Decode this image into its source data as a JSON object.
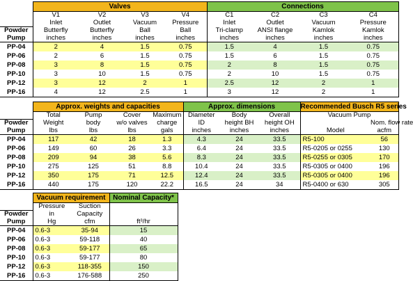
{
  "table1": {
    "groups": {
      "valves": "Valves",
      "connections": "Connections"
    },
    "corner": [
      "Powder",
      "Pump"
    ],
    "cols": [
      [
        "V1",
        "Inlet",
        "Butterfly",
        "inches"
      ],
      [
        "V2",
        "Outlet",
        "Butterfly",
        "inches"
      ],
      [
        "V3",
        "Vacuum",
        "Ball",
        "inches"
      ],
      [
        "V4",
        "Pressure",
        "Ball",
        "inches"
      ],
      [
        "C1",
        "Inlet",
        "Tri-clamp",
        "inches"
      ],
      [
        "C2",
        "Outlet",
        "ANSI flange",
        "inches"
      ],
      [
        "C3",
        "Vacuum",
        "Kamlok",
        "inches"
      ],
      [
        "C4",
        "Pressure",
        "Kamlok",
        "inches"
      ]
    ],
    "rows": [
      {
        "pump": "PP-04",
        "v": [
          "2",
          "4",
          "1.5",
          "0.75",
          "1.5",
          "4",
          "1.5",
          "0.75"
        ]
      },
      {
        "pump": "PP-06",
        "v": [
          "2",
          "6",
          "1.5",
          "0.75",
          "1.5",
          "6",
          "1.5",
          "0.75"
        ]
      },
      {
        "pump": "PP-08",
        "v": [
          "3",
          "8",
          "1.5",
          "0.75",
          "2",
          "8",
          "1.5",
          "0.75"
        ]
      },
      {
        "pump": "PP-10",
        "v": [
          "3",
          "10",
          "1.5",
          "0.75",
          "2",
          "10",
          "1.5",
          "0.75"
        ]
      },
      {
        "pump": "PP-12",
        "v": [
          "3",
          "12",
          "2",
          "1",
          "2.5",
          "12",
          "2",
          "1"
        ]
      },
      {
        "pump": "PP-16",
        "v": [
          "4",
          "12",
          "2.5",
          "1",
          "3",
          "12",
          "2",
          "1"
        ]
      }
    ]
  },
  "table2": {
    "groups": {
      "weights": "Approx. weights and capacities",
      "dims": "Approx. dimensions",
      "busch": "Recommended Busch R5 series"
    },
    "corner": [
      "Powder",
      "Pump"
    ],
    "cols": [
      [
        "",
        "Total",
        "Weight",
        "lbs"
      ],
      [
        "",
        "Pump",
        "body",
        "lbs"
      ],
      [
        "",
        "Cover",
        "w/o valves",
        "lbs"
      ],
      [
        "",
        "Maximum",
        "charge",
        "gals"
      ],
      [
        "",
        "Diameter",
        "ID",
        "inches"
      ],
      [
        "",
        "Body",
        "height BH",
        "inches"
      ],
      [
        "",
        "Overall",
        "height OH",
        "inches"
      ]
    ],
    "busch_head": {
      "vacuum_pump": "Vacuum Pump",
      "nom_flow": "Nom. flow rate",
      "model": "Model",
      "acfm": "acfm"
    },
    "rows": [
      {
        "pump": "PP-04",
        "v": [
          "117",
          "42",
          "18",
          "1.3",
          "4.3",
          "24",
          "33.5"
        ],
        "model": "R5-100",
        "flow": "56"
      },
      {
        "pump": "PP-06",
        "v": [
          "149",
          "60",
          "26",
          "3.3",
          "6.4",
          "24",
          "33.5"
        ],
        "model": "R5-0205 or 0255",
        "flow": "130"
      },
      {
        "pump": "PP-08",
        "v": [
          "209",
          "94",
          "38",
          "5.6",
          "8.3",
          "24",
          "33.5"
        ],
        "model": "R5-0255 or 0305",
        "flow": "170"
      },
      {
        "pump": "PP-10",
        "v": [
          "275",
          "125",
          "51",
          "8.8",
          "10.4",
          "24",
          "33.5"
        ],
        "model": "R5-0305 or 0400",
        "flow": "196"
      },
      {
        "pump": "PP-12",
        "v": [
          "350",
          "175",
          "71",
          "12.5",
          "12.4",
          "24",
          "33.5"
        ],
        "model": "R5-0305 or 0400",
        "flow": "196"
      },
      {
        "pump": "PP-16",
        "v": [
          "440",
          "175",
          "120",
          "22.2",
          "16.5",
          "24",
          "34"
        ],
        "model": "R5-0400 or 630",
        "flow": "305"
      }
    ]
  },
  "table3": {
    "groups": {
      "vacuum": "Vacuum requirement",
      "nominal": "Nominal Capacity*"
    },
    "corner": [
      "Powder",
      "Pump"
    ],
    "cols": [
      [
        "Pressure",
        "in",
        "Hg"
      ],
      [
        "Suction",
        "Capacity",
        "cfm"
      ]
    ],
    "nominal_unit": "ft³/hr",
    "rows": [
      {
        "pump": "PP-04",
        "p": "0.6-3",
        "s": "35-94",
        "n": "15"
      },
      {
        "pump": "PP-06",
        "p": "0.6-3",
        "s": "59-118",
        "n": "40"
      },
      {
        "pump": "PP-08",
        "p": "0.6-3",
        "s": "59-177",
        "n": "65"
      },
      {
        "pump": "PP-10",
        "p": "0.6-3",
        "s": "59-177",
        "n": "80"
      },
      {
        "pump": "PP-12",
        "p": "0.6-3",
        "s": "118-355",
        "n": "150"
      },
      {
        "pump": "PP-16",
        "p": "0.6-3",
        "s": "176-588",
        "n": "250"
      }
    ]
  }
}
